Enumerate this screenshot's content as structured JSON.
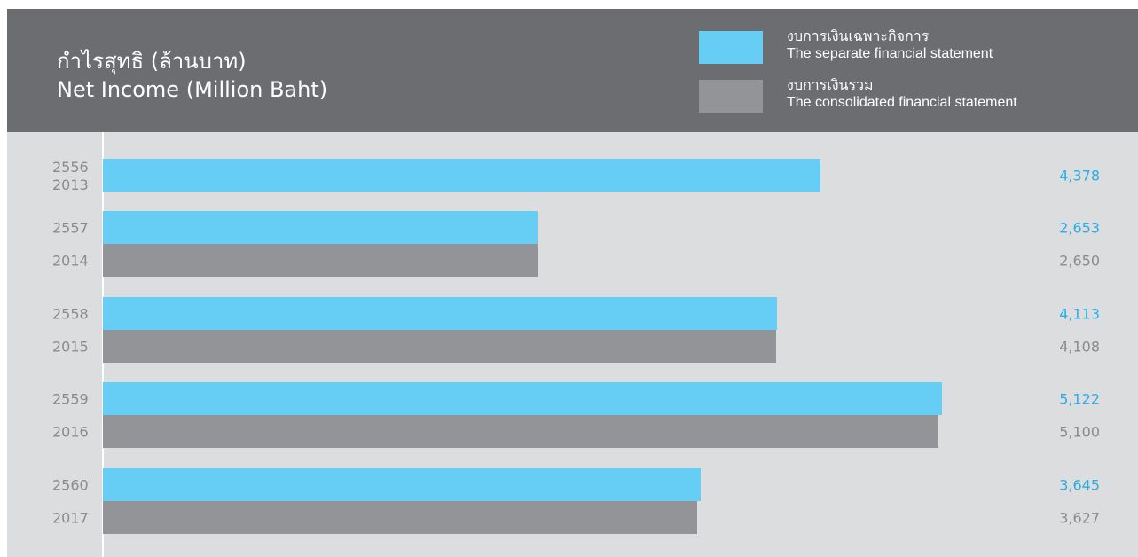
{
  "header": {
    "title_th": "กำไรสุทธิ (ล้านบาท)",
    "title_en": "Net Income (Million Baht)"
  },
  "legend": [
    {
      "label_th": "งบการเงินเฉพาะกิจการ",
      "label_en": "The separate financial statement",
      "color": "#66cdf4"
    },
    {
      "label_th": "งบการเงินรวม",
      "label_en": "The consolidated financial statement",
      "color": "#939497"
    }
  ],
  "chart_data": {
    "type": "bar",
    "orientation": "horizontal",
    "title": "Net Income (Million Baht)",
    "categories": [
      {
        "be": "2556",
        "ce": "2013"
      },
      {
        "be": "2557",
        "ce": "2014"
      },
      {
        "be": "2558",
        "ce": "2015"
      },
      {
        "be": "2559",
        "ce": "2016"
      },
      {
        "be": "2560",
        "ce": "2017"
      }
    ],
    "series": [
      {
        "name": "The separate financial statement",
        "color": "#66cdf4",
        "label_color": "#29aee3",
        "values": [
          4378,
          2653,
          4113,
          5122,
          3645
        ],
        "labels": [
          "4,378",
          "2,653",
          "4,113",
          "5,122",
          "3,645"
        ]
      },
      {
        "name": "The consolidated financial statement",
        "color": "#939497",
        "label_color": "#8a8b8d",
        "values": [
          null,
          2650,
          4108,
          5100,
          3627
        ],
        "labels": [
          "",
          "2,650",
          "4,108",
          "5,100",
          "3,627"
        ]
      }
    ],
    "xlim": [
      0,
      5500
    ],
    "grid": false,
    "legend_position": "top-right"
  }
}
